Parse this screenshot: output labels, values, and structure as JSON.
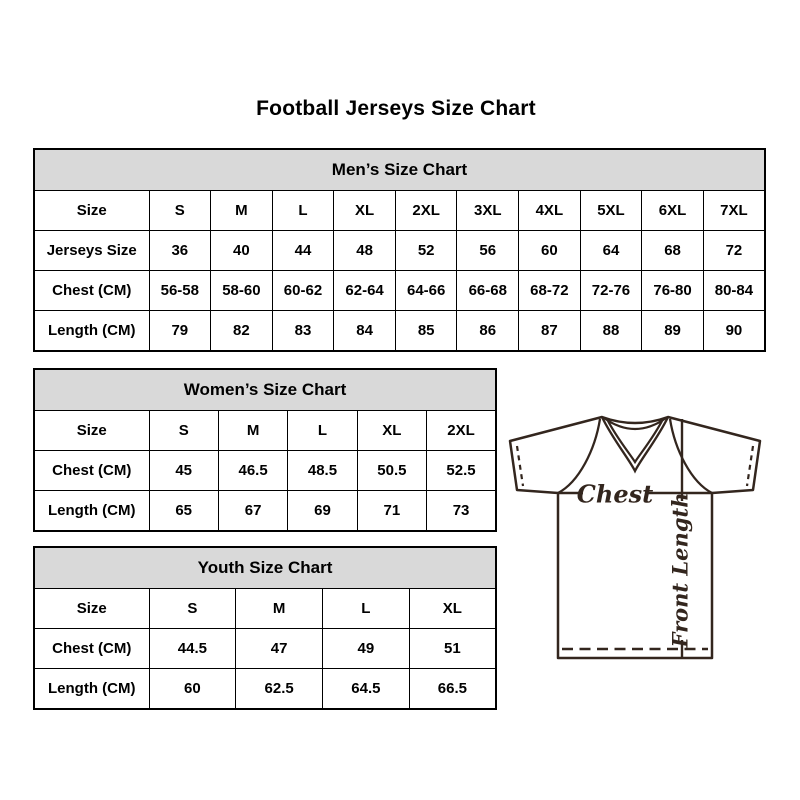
{
  "page_title": "Football Jerseys Size Chart",
  "tables": [
    {
      "header": "Men’s Size Chart",
      "rows": [
        [
          "Size",
          "S",
          "M",
          "L",
          "XL",
          "2XL",
          "3XL",
          "4XL",
          "5XL",
          "6XL",
          "7XL"
        ],
        [
          "Jerseys Size",
          "36",
          "40",
          "44",
          "48",
          "52",
          "56",
          "60",
          "64",
          "68",
          "72"
        ],
        [
          "Chest (CM)",
          "56-58",
          "58-60",
          "60-62",
          "62-64",
          "64-66",
          "66-68",
          "68-72",
          "72-76",
          "76-80",
          "80-84"
        ],
        [
          "Length (CM)",
          "79",
          "82",
          "83",
          "84",
          "85",
          "86",
          "87",
          "88",
          "89",
          "90"
        ]
      ]
    },
    {
      "header": "Women’s Size Chart",
      "rows": [
        [
          "Size",
          "S",
          "M",
          "L",
          "XL",
          "2XL"
        ],
        [
          "Chest (CM)",
          "45",
          "46.5",
          "48.5",
          "50.5",
          "52.5"
        ],
        [
          "Length (CM)",
          "65",
          "67",
          "69",
          "71",
          "73"
        ]
      ]
    },
    {
      "header": "Youth Size Chart",
      "rows": [
        [
          "Size",
          "S",
          "M",
          "L",
          "XL"
        ],
        [
          "Chest (CM)",
          "44.5",
          "47",
          "49",
          "51"
        ],
        [
          "Length (CM)",
          "60",
          "62.5",
          "64.5",
          "66.5"
        ]
      ]
    }
  ],
  "jersey_diagram": {
    "chest_label": "Chest",
    "front_length_label": "Front Length"
  },
  "colors": {
    "table_header_bg": "#d9d9d9",
    "table_border": "#000000",
    "text": "#000000",
    "jersey_line": "#33261e",
    "background": "#ffffff"
  }
}
